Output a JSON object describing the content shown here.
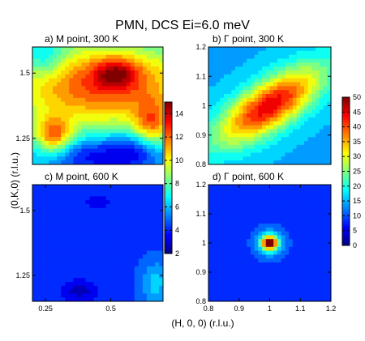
{
  "figure_title": "PMN, DCS Ei=6.0 meV",
  "shared_xlabel": "(H, 0, 0) (r.l.u.)",
  "shared_ylabel": "(0,K,0) (r.l.u.)",
  "colors": {
    "colormap": [
      "#000080",
      "#0000ff",
      "#0080ff",
      "#00ffff",
      "#80ff80",
      "#ffff00",
      "#ff8000",
      "#ff0000",
      "#800000"
    ],
    "contour_line": "#000000",
    "background": "#ffffff"
  },
  "chart_data": [
    {
      "type": "heatmap",
      "panel": "a",
      "title": "a) M point, 300 K",
      "xlim": [
        0.2,
        0.7
      ],
      "ylim": [
        1.15,
        1.6
      ],
      "xticks": [],
      "yticks": [
        1.25,
        1.5
      ],
      "ytick_labels": [
        "1.25",
        "1.5"
      ],
      "clim": [
        2,
        15
      ],
      "colorbar": {
        "ticks": [
          2,
          4,
          6,
          8,
          10,
          12,
          14
        ],
        "labels": [
          "2",
          "4",
          "6",
          "8",
          "10",
          "12",
          "14"
        ]
      },
      "background_level": 6,
      "blobs": [
        {
          "x": 0.47,
          "y": 1.45,
          "sx": 0.28,
          "sy": 0.12,
          "amp": 6.5
        },
        {
          "x": 0.52,
          "y": 1.5,
          "sx": 0.06,
          "sy": 0.04,
          "amp": 3.5
        },
        {
          "x": 0.28,
          "y": 1.26,
          "sx": 0.05,
          "sy": 0.05,
          "amp": 5
        },
        {
          "x": 0.66,
          "y": 1.3,
          "sx": 0.05,
          "sy": 0.06,
          "amp": 4
        },
        {
          "x": 0.58,
          "y": 1.2,
          "sx": 0.08,
          "sy": 0.05,
          "amp": -3
        },
        {
          "x": 0.4,
          "y": 1.18,
          "sx": 0.1,
          "sy": 0.05,
          "amp": -2.5
        },
        {
          "x": 0.25,
          "y": 1.55,
          "sx": 0.05,
          "sy": 0.05,
          "amp": -2
        }
      ]
    },
    {
      "type": "heatmap",
      "panel": "b",
      "title": "b) Γ point, 300 K",
      "xlim": [
        0.8,
        1.2
      ],
      "ylim": [
        0.8,
        1.2
      ],
      "xticks": [],
      "yticks": [
        0.8,
        0.9,
        1.0,
        1.1,
        1.2
      ],
      "ytick_labels": [
        "0.8",
        "0.9",
        "1",
        "1.1",
        "1.2"
      ],
      "clim": [
        0,
        50
      ],
      "colorbar": {
        "ticks": [
          0,
          5,
          10,
          15,
          20,
          25,
          30,
          35,
          40,
          45,
          50
        ],
        "labels": [
          "0",
          "5",
          "10",
          "15",
          "20",
          "25",
          "30",
          "35",
          "40",
          "45",
          "50"
        ]
      },
      "background_level": 15,
      "blobs": [
        {
          "x": 1.0,
          "y": 1.0,
          "major": 0.14,
          "minor": 0.055,
          "angle": -35,
          "amp": 30
        }
      ]
    },
    {
      "type": "heatmap",
      "panel": "c",
      "title": "c) M point, 600 K",
      "xlim": [
        0.2,
        0.7
      ],
      "ylim": [
        1.15,
        1.6
      ],
      "xticks": [
        0.25,
        0.5
      ],
      "xtick_labels": [
        "0.25",
        "0.5"
      ],
      "yticks": [
        1.25,
        1.5
      ],
      "ytick_labels": [
        "1.25",
        "1.5"
      ],
      "clim": [
        2,
        15
      ],
      "background_level": 4.3,
      "blobs": [
        {
          "x": 0.67,
          "y": 1.22,
          "sx": 0.04,
          "sy": 0.06,
          "amp": 2
        },
        {
          "x": 0.38,
          "y": 1.19,
          "sx": 0.05,
          "sy": 0.03,
          "amp": -1.5
        },
        {
          "x": 0.45,
          "y": 1.53,
          "sx": 0.03,
          "sy": 0.02,
          "amp": -1.2
        }
      ]
    },
    {
      "type": "heatmap",
      "panel": "d",
      "title": "d) Γ point, 600 K",
      "xlim": [
        0.8,
        1.2
      ],
      "ylim": [
        0.8,
        1.2
      ],
      "xticks": [
        0.8,
        0.9,
        1.0,
        1.1,
        1.2
      ],
      "xtick_labels": [
        "0.8",
        "0.9",
        "1",
        "1.1",
        "1.2"
      ],
      "yticks": [
        0.8,
        0.9,
        1.0,
        1.1,
        1.2
      ],
      "ytick_labels": [
        "0.8",
        "0.9",
        "1",
        "1.1",
        "1.2"
      ],
      "clim": [
        0,
        50
      ],
      "background_level": 8,
      "blobs": [
        {
          "x": 1.0,
          "y": 1.0,
          "sx": 0.018,
          "sy": 0.018,
          "amp": 38
        },
        {
          "x": 1.0,
          "y": 1.0,
          "sx": 0.04,
          "sy": 0.04,
          "amp": 8
        }
      ]
    }
  ]
}
